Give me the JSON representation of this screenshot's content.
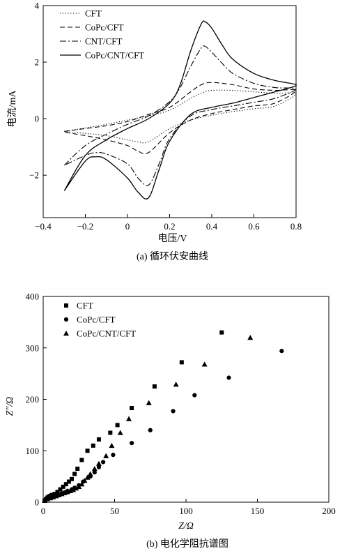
{
  "chart_data": [
    {
      "type": "line",
      "caption": "(a) 循环伏安曲线",
      "xlabel": "电压/V",
      "ylabel": "电流/mA",
      "xlim": [
        -0.4,
        0.8
      ],
      "ylim": [
        -3.5,
        4
      ],
      "xticks": [
        -0.4,
        -0.2,
        0,
        0.2,
        0.4,
        0.6,
        0.8
      ],
      "xtick_labels": [
        "−0.4",
        "−0.2",
        "0",
        "0.2",
        "0.4",
        "0.6",
        "0.8"
      ],
      "yticks": [
        -2,
        0,
        2,
        4
      ],
      "ytick_labels": [
        "−2",
        "0",
        "2",
        "4"
      ],
      "grid": false,
      "legend_position": "top-left",
      "series": [
        {
          "name": "CFT",
          "style": "dotted",
          "forward": [
            [
              -0.3,
              -0.45
            ],
            [
              -0.2,
              -0.33
            ],
            [
              -0.1,
              -0.2
            ],
            [
              0,
              -0.05
            ],
            [
              0.1,
              0.1
            ],
            [
              0.2,
              0.3
            ],
            [
              0.3,
              0.72
            ],
            [
              0.35,
              0.9
            ],
            [
              0.4,
              1.0
            ],
            [
              0.5,
              1.0
            ],
            [
              0.6,
              0.95
            ],
            [
              0.7,
              0.9
            ],
            [
              0.8,
              0.88
            ]
          ],
          "reverse": [
            [
              0.8,
              0.6
            ],
            [
              0.7,
              0.45
            ],
            [
              0.6,
              0.35
            ],
            [
              0.5,
              0.25
            ],
            [
              0.4,
              0.12
            ],
            [
              0.3,
              -0.05
            ],
            [
              0.2,
              -0.35
            ],
            [
              0.1,
              -0.82
            ],
            [
              0.05,
              -0.82
            ],
            [
              0,
              -0.75
            ],
            [
              -0.1,
              -0.6
            ],
            [
              -0.2,
              -0.52
            ],
            [
              -0.3,
              -0.45
            ]
          ]
        },
        {
          "name": "CoPc/CFT",
          "style": "dashed",
          "forward": [
            [
              -0.3,
              -0.45
            ],
            [
              -0.2,
              -0.35
            ],
            [
              -0.1,
              -0.25
            ],
            [
              0,
              -0.1
            ],
            [
              0.1,
              0.15
            ],
            [
              0.2,
              0.4
            ],
            [
              0.3,
              0.95
            ],
            [
              0.35,
              1.2
            ],
            [
              0.4,
              1.28
            ],
            [
              0.5,
              1.2
            ],
            [
              0.6,
              1.05
            ],
            [
              0.7,
              1.0
            ],
            [
              0.8,
              1.0
            ]
          ],
          "reverse": [
            [
              0.8,
              0.7
            ],
            [
              0.7,
              0.55
            ],
            [
              0.6,
              0.45
            ],
            [
              0.5,
              0.32
            ],
            [
              0.4,
              0.18
            ],
            [
              0.3,
              -0.05
            ],
            [
              0.2,
              -0.5
            ],
            [
              0.1,
              -1.2
            ],
            [
              0.05,
              -1.15
            ],
            [
              0,
              -0.95
            ],
            [
              -0.1,
              -0.75
            ],
            [
              -0.2,
              -0.6
            ],
            [
              -0.3,
              -0.48
            ]
          ]
        },
        {
          "name": "CNT/CFT",
          "style": "dash-dot",
          "forward": [
            [
              -0.3,
              -1.65
            ],
            [
              -0.2,
              -0.95
            ],
            [
              -0.1,
              -0.55
            ],
            [
              0,
              -0.2
            ],
            [
              0.1,
              0.1
            ],
            [
              0.2,
              0.6
            ],
            [
              0.25,
              1.1
            ],
            [
              0.3,
              1.85
            ],
            [
              0.35,
              2.5
            ],
            [
              0.37,
              2.55
            ],
            [
              0.4,
              2.35
            ],
            [
              0.45,
              1.95
            ],
            [
              0.5,
              1.6
            ],
            [
              0.6,
              1.25
            ],
            [
              0.7,
              1.1
            ],
            [
              0.8,
              1.05
            ]
          ],
          "reverse": [
            [
              0.8,
              0.9
            ],
            [
              0.7,
              0.72
            ],
            [
              0.6,
              0.58
            ],
            [
              0.5,
              0.45
            ],
            [
              0.4,
              0.32
            ],
            [
              0.3,
              0.1
            ],
            [
              0.2,
              -0.7
            ],
            [
              0.15,
              -1.6
            ],
            [
              0.1,
              -2.35
            ],
            [
              0.05,
              -2.1
            ],
            [
              0,
              -1.6
            ],
            [
              -0.1,
              -1.25
            ],
            [
              -0.15,
              -1.2
            ],
            [
              -0.2,
              -1.3
            ],
            [
              -0.3,
              -1.65
            ]
          ]
        },
        {
          "name": "CoPc/CNT/CFT",
          "style": "solid",
          "forward": [
            [
              -0.3,
              -2.55
            ],
            [
              -0.2,
              -1.3
            ],
            [
              -0.1,
              -0.75
            ],
            [
              0,
              -0.35
            ],
            [
              0.1,
              0.0
            ],
            [
              0.2,
              0.55
            ],
            [
              0.25,
              1.2
            ],
            [
              0.3,
              2.4
            ],
            [
              0.35,
              3.35
            ],
            [
              0.37,
              3.42
            ],
            [
              0.4,
              3.2
            ],
            [
              0.45,
              2.6
            ],
            [
              0.5,
              2.1
            ],
            [
              0.6,
              1.6
            ],
            [
              0.7,
              1.35
            ],
            [
              0.8,
              1.2
            ]
          ],
          "reverse": [
            [
              0.8,
              1.2
            ],
            [
              0.75,
              1.05
            ],
            [
              0.7,
              0.95
            ],
            [
              0.6,
              0.75
            ],
            [
              0.5,
              0.55
            ],
            [
              0.4,
              0.4
            ],
            [
              0.3,
              0.15
            ],
            [
              0.2,
              -0.8
            ],
            [
              0.15,
              -1.8
            ],
            [
              0.1,
              -2.8
            ],
            [
              0.05,
              -2.6
            ],
            [
              0,
              -2.1
            ],
            [
              -0.1,
              -1.45
            ],
            [
              -0.15,
              -1.35
            ],
            [
              -0.2,
              -1.5
            ],
            [
              -0.3,
              -2.55
            ]
          ]
        }
      ]
    },
    {
      "type": "scatter",
      "caption": "(b) 电化学阻抗谱图",
      "xlabel": "Z/Ω",
      "ylabel": "Z″/Ω",
      "xlim": [
        0,
        200
      ],
      "ylim": [
        0,
        400
      ],
      "xticks": [
        0,
        50,
        100,
        150,
        200
      ],
      "xtick_labels": [
        "0",
        "50",
        "100",
        "150",
        "200"
      ],
      "yticks": [
        0,
        100,
        200,
        300,
        400
      ],
      "ytick_labels": [
        "0",
        "100",
        "200",
        "300",
        "400"
      ],
      "grid": false,
      "legend_position": "top-left",
      "series": [
        {
          "name": "CFT",
          "marker": "square",
          "points": [
            [
              1,
              3
            ],
            [
              2,
              6
            ],
            [
              3,
              9
            ],
            [
              4,
              11
            ],
            [
              5,
              12
            ],
            [
              6,
              14
            ],
            [
              8,
              16
            ],
            [
              10,
              20
            ],
            [
              12,
              25
            ],
            [
              14,
              30
            ],
            [
              16,
              35
            ],
            [
              18,
              40
            ],
            [
              20,
              45
            ],
            [
              22,
              55
            ],
            [
              24,
              65
            ],
            [
              27,
              82
            ],
            [
              31,
              100
            ],
            [
              35,
              110
            ],
            [
              39,
              122
            ],
            [
              47,
              135
            ],
            [
              52,
              150
            ],
            [
              62,
              183
            ],
            [
              78,
              225
            ],
            [
              97,
              272
            ],
            [
              125,
              330
            ]
          ]
        },
        {
          "name": "CoPc/CFT",
          "marker": "circle",
          "points": [
            [
              1,
              4
            ],
            [
              3,
              7
            ],
            [
              5,
              9
            ],
            [
              7,
              11
            ],
            [
              9,
              13
            ],
            [
              11,
              15
            ],
            [
              13,
              17
            ],
            [
              15,
              19
            ],
            [
              17,
              22
            ],
            [
              20,
              25
            ],
            [
              22,
              28
            ],
            [
              25,
              33
            ],
            [
              28,
              40
            ],
            [
              33,
              50
            ],
            [
              36,
              58
            ],
            [
              39,
              68
            ],
            [
              42,
              78
            ],
            [
              49,
              92
            ],
            [
              62,
              115
            ],
            [
              75,
              140
            ],
            [
              91,
              177
            ],
            [
              106,
              208
            ],
            [
              130,
              242
            ],
            [
              167,
              294
            ]
          ]
        },
        {
          "name": "CoPc/CNT/CFT",
          "marker": "triangle",
          "points": [
            [
              1,
              3
            ],
            [
              3,
              6
            ],
            [
              5,
              8
            ],
            [
              7,
              10
            ],
            [
              9,
              12
            ],
            [
              11,
              14
            ],
            [
              13,
              16
            ],
            [
              15,
              18
            ],
            [
              17,
              20
            ],
            [
              19,
              22
            ],
            [
              21,
              24
            ],
            [
              23,
              27
            ],
            [
              25,
              30
            ],
            [
              27,
              35
            ],
            [
              29,
              42
            ],
            [
              31,
              48
            ],
            [
              33,
              55
            ],
            [
              36,
              65
            ],
            [
              39,
              75
            ],
            [
              44,
              90
            ],
            [
              48,
              110
            ],
            [
              54,
              135
            ],
            [
              60,
              162
            ],
            [
              74,
              193
            ],
            [
              93,
              229
            ],
            [
              113,
              268
            ],
            [
              145,
              320
            ]
          ]
        }
      ]
    }
  ]
}
